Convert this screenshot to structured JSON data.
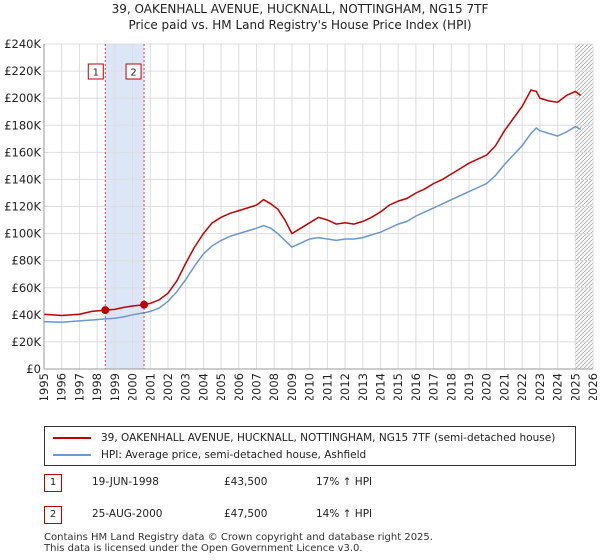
{
  "title_line1": "39, OAKENHALL AVENUE, HUCKNALL, NOTTINGHAM, NG15 7TF",
  "title_line2": "Price paid vs. HM Land Registry's House Price Index (HPI)",
  "colors": {
    "property": "#c00000",
    "hpi": "#6a97d0",
    "shade": "#dde6f7",
    "grid": "#dddddd"
  },
  "chart_data": {
    "type": "line",
    "title": "Price paid vs. HM Land Registry's House Price Index (HPI)",
    "ylim": [
      0,
      240000
    ],
    "xlim": [
      1995,
      2026
    ],
    "y_ticks": [
      0,
      20000,
      40000,
      60000,
      80000,
      100000,
      120000,
      140000,
      160000,
      180000,
      200000,
      220000,
      240000
    ],
    "y_tick_labels": [
      "£0",
      "£20K",
      "£40K",
      "£60K",
      "£80K",
      "£100K",
      "£120K",
      "£140K",
      "£160K",
      "£180K",
      "£200K",
      "£220K",
      "£240K"
    ],
    "x_ticks": [
      1995,
      1996,
      1997,
      1998,
      1999,
      2000,
      2001,
      2002,
      2003,
      2004,
      2005,
      2006,
      2007,
      2008,
      2009,
      2010,
      2011,
      2012,
      2013,
      2014,
      2015,
      2016,
      2017,
      2018,
      2019,
      2020,
      2021,
      2022,
      2023,
      2024,
      2025,
      2026
    ],
    "shaded_range": [
      1998.46,
      2000.65
    ],
    "hatch_from": 2025.0,
    "series": [
      {
        "name": "39, OAKENHALL AVENUE, HUCKNALL, NOTTINGHAM, NG15 7TF (semi-detached house)",
        "color": "#c00000",
        "points": [
          [
            1995.0,
            40500
          ],
          [
            1996.0,
            39500
          ],
          [
            1997.0,
            40500
          ],
          [
            1997.7,
            42500
          ],
          [
            1998.46,
            43500
          ],
          [
            1999.0,
            44000
          ],
          [
            1999.5,
            45500
          ],
          [
            2000.0,
            46500
          ],
          [
            2000.65,
            47500
          ],
          [
            2001.0,
            48500
          ],
          [
            2001.5,
            51000
          ],
          [
            2002.0,
            56000
          ],
          [
            2002.5,
            65000
          ],
          [
            2003.0,
            78000
          ],
          [
            2003.5,
            90000
          ],
          [
            2004.0,
            100000
          ],
          [
            2004.5,
            108000
          ],
          [
            2005.0,
            112000
          ],
          [
            2005.5,
            115000
          ],
          [
            2006.0,
            117000
          ],
          [
            2006.5,
            119000
          ],
          [
            2007.0,
            121000
          ],
          [
            2007.4,
            125000
          ],
          [
            2007.8,
            122000
          ],
          [
            2008.2,
            118000
          ],
          [
            2008.6,
            110000
          ],
          [
            2009.0,
            100000
          ],
          [
            2009.5,
            104000
          ],
          [
            2010.0,
            108000
          ],
          [
            2010.5,
            112000
          ],
          [
            2011.0,
            110000
          ],
          [
            2011.5,
            107000
          ],
          [
            2012.0,
            108000
          ],
          [
            2012.5,
            107000
          ],
          [
            2013.0,
            109000
          ],
          [
            2013.5,
            112000
          ],
          [
            2014.0,
            116000
          ],
          [
            2014.5,
            121000
          ],
          [
            2015.0,
            124000
          ],
          [
            2015.5,
            126000
          ],
          [
            2016.0,
            130000
          ],
          [
            2016.5,
            133000
          ],
          [
            2017.0,
            137000
          ],
          [
            2017.5,
            140000
          ],
          [
            2018.0,
            144000
          ],
          [
            2018.5,
            148000
          ],
          [
            2019.0,
            152000
          ],
          [
            2019.5,
            155000
          ],
          [
            2020.0,
            158000
          ],
          [
            2020.5,
            165000
          ],
          [
            2021.0,
            176000
          ],
          [
            2021.5,
            185000
          ],
          [
            2022.0,
            194000
          ],
          [
            2022.5,
            206000
          ],
          [
            2022.8,
            205000
          ],
          [
            2023.0,
            200000
          ],
          [
            2023.5,
            198000
          ],
          [
            2024.0,
            197000
          ],
          [
            2024.5,
            202000
          ],
          [
            2025.0,
            205000
          ],
          [
            2025.3,
            202000
          ]
        ]
      },
      {
        "name": "HPI: Average price, semi-detached house, Ashfield",
        "color": "#6a97d0",
        "points": [
          [
            1995.0,
            35000
          ],
          [
            1996.0,
            34500
          ],
          [
            1997.0,
            35500
          ],
          [
            1998.0,
            36500
          ],
          [
            1998.46,
            37000
          ],
          [
            1999.0,
            37500
          ],
          [
            1999.5,
            38500
          ],
          [
            2000.0,
            40000
          ],
          [
            2000.65,
            41500
          ],
          [
            2001.0,
            42500
          ],
          [
            2001.5,
            45000
          ],
          [
            2002.0,
            50000
          ],
          [
            2002.5,
            57000
          ],
          [
            2003.0,
            66000
          ],
          [
            2003.5,
            76000
          ],
          [
            2004.0,
            85000
          ],
          [
            2004.5,
            91000
          ],
          [
            2005.0,
            95000
          ],
          [
            2005.5,
            98000
          ],
          [
            2006.0,
            100000
          ],
          [
            2006.5,
            102000
          ],
          [
            2007.0,
            104000
          ],
          [
            2007.4,
            106000
          ],
          [
            2007.8,
            104000
          ],
          [
            2008.2,
            100000
          ],
          [
            2008.6,
            95000
          ],
          [
            2009.0,
            90000
          ],
          [
            2009.5,
            93000
          ],
          [
            2010.0,
            96000
          ],
          [
            2010.5,
            97000
          ],
          [
            2011.0,
            96000
          ],
          [
            2011.5,
            95000
          ],
          [
            2012.0,
            96000
          ],
          [
            2012.5,
            96000
          ],
          [
            2013.0,
            97000
          ],
          [
            2013.5,
            99000
          ],
          [
            2014.0,
            101000
          ],
          [
            2014.5,
            104000
          ],
          [
            2015.0,
            107000
          ],
          [
            2015.5,
            109000
          ],
          [
            2016.0,
            113000
          ],
          [
            2016.5,
            116000
          ],
          [
            2017.0,
            119000
          ],
          [
            2017.5,
            122000
          ],
          [
            2018.0,
            125000
          ],
          [
            2018.5,
            128000
          ],
          [
            2019.0,
            131000
          ],
          [
            2019.5,
            134000
          ],
          [
            2020.0,
            137000
          ],
          [
            2020.5,
            143000
          ],
          [
            2021.0,
            151000
          ],
          [
            2021.5,
            158000
          ],
          [
            2022.0,
            165000
          ],
          [
            2022.5,
            174000
          ],
          [
            2022.8,
            178000
          ],
          [
            2023.0,
            176000
          ],
          [
            2023.5,
            174000
          ],
          [
            2024.0,
            172000
          ],
          [
            2024.5,
            175000
          ],
          [
            2025.0,
            179000
          ],
          [
            2025.3,
            177000
          ]
        ]
      }
    ],
    "markers": [
      {
        "label": "1",
        "x": 1998.46,
        "y": 43500
      },
      {
        "label": "2",
        "x": 2000.65,
        "y": 47500
      }
    ]
  },
  "legend": {
    "property": "39, OAKENHALL AVENUE, HUCKNALL, NOTTINGHAM, NG15 7TF (semi-detached house)",
    "hpi": "HPI: Average price, semi-detached house, Ashfield"
  },
  "transactions": [
    {
      "num": "1",
      "date": "19-JUN-1998",
      "price": "£43,500",
      "hpi": "17% ↑ HPI"
    },
    {
      "num": "2",
      "date": "25-AUG-2000",
      "price": "£47,500",
      "hpi": "14% ↑ HPI"
    }
  ],
  "footer": {
    "line1": "Contains HM Land Registry data © Crown copyright and database right 2025.",
    "line2": "This data is licensed under the Open Government Licence v3.0."
  }
}
